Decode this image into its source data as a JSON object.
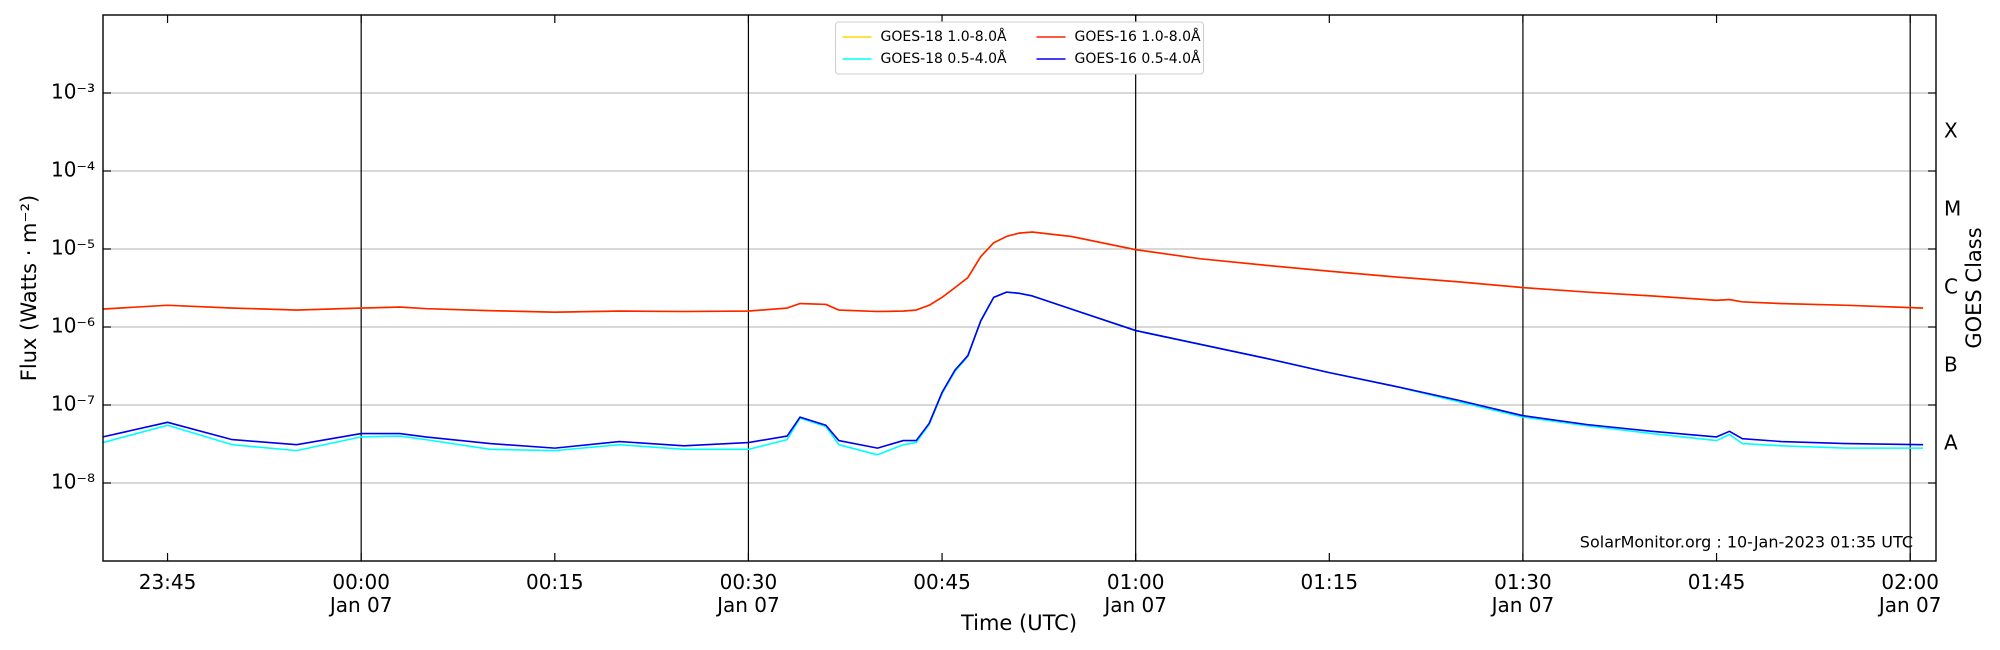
{
  "chart_data": {
    "type": "line",
    "ylabel": "Flux (Watts · m⁻²)",
    "xlabel": "Time (UTC)",
    "y2label": "GOES Class",
    "annotation": "SolarMonitor.org : 10-Jan-2023 01:35 UTC",
    "log_y": true,
    "grid": true,
    "legend_position": "top-center",
    "xlim": [
      "23:40",
      "02:02"
    ],
    "xticks": [
      "23:45",
      {
        "value": "00:00",
        "label": "00:00\nJan 07"
      },
      "00:15",
      {
        "value": "00:30",
        "label": "00:30\nJan 07"
      },
      "00:45",
      {
        "value": "01:00",
        "label": "01:00\nJan 07"
      },
      "01:15",
      {
        "value": "01:30",
        "label": "01:30\nJan 07"
      },
      "01:45",
      {
        "value": "02:00",
        "label": "02:00\nJan 07"
      }
    ],
    "vlines": [
      "00:00",
      "00:30",
      "01:00",
      "01:30",
      "02:00"
    ],
    "ylim": [
      1e-09,
      0.01
    ],
    "yticks": [
      {
        "value": 1e-08,
        "label": "10⁻⁸"
      },
      {
        "value": 1e-07,
        "label": "10⁻⁷"
      },
      {
        "value": 1e-06,
        "label": "10⁻⁶"
      },
      {
        "value": 1e-05,
        "label": "10⁻⁵"
      },
      {
        "value": 0.0001,
        "label": "10⁻⁴"
      },
      {
        "value": 0.001,
        "label": "10⁻³"
      }
    ],
    "y2lim": [
      1e-09,
      0.01
    ],
    "y2ticks": [
      {
        "value": 3.16e-08,
        "label": "A"
      },
      {
        "value": 3.16e-07,
        "label": "B"
      },
      {
        "value": 3.16e-06,
        "label": "C"
      },
      {
        "value": 3.16e-05,
        "label": "M"
      },
      {
        "value": 0.000316,
        "label": "X"
      }
    ],
    "x": [
      "23:40",
      "23:45",
      "23:50",
      "23:55",
      "00:00",
      "00:03",
      "00:05",
      "00:10",
      "00:15",
      "00:20",
      "00:25",
      "00:30",
      "00:33",
      "00:34",
      "00:36",
      "00:37",
      "00:40",
      "00:42",
      "00:43",
      "00:44",
      "00:45",
      "00:46",
      "00:47",
      "00:48",
      "00:49",
      "00:50",
      "00:51",
      "00:52",
      "00:55",
      "01:00",
      "01:05",
      "01:10",
      "01:15",
      "01:20",
      "01:25",
      "01:30",
      "01:35",
      "01:40",
      "01:45",
      "01:46",
      "01:47",
      "01:50",
      "01:55",
      "02:01"
    ],
    "series": [
      {
        "name": "GOES-18 1.0-8.0Å",
        "color": "#ffd700",
        "values": [
          1.7e-06,
          1.9e-06,
          1.75e-06,
          1.65e-06,
          1.75e-06,
          1.8e-06,
          1.72e-06,
          1.62e-06,
          1.55e-06,
          1.6e-06,
          1.58e-06,
          1.6e-06,
          1.75e-06,
          2e-06,
          1.95e-06,
          1.65e-06,
          1.58e-06,
          1.6e-06,
          1.65e-06,
          1.9e-06,
          2.4e-06,
          3.2e-06,
          4.3e-06,
          8e-06,
          1.2e-05,
          1.45e-05,
          1.6e-05,
          1.65e-05,
          1.45e-05,
          9.8e-06,
          7.5e-06,
          6.2e-06,
          5.2e-06,
          4.4e-06,
          3.8e-06,
          3.2e-06,
          2.8e-06,
          2.5e-06,
          2.2e-06,
          2.25e-06,
          2.1e-06,
          2e-06,
          1.9e-06,
          1.75e-06
        ]
      },
      {
        "name": "GOES-18 0.5-4.0Å",
        "color": "#00ffff",
        "values": [
          3.3e-08,
          5.5e-08,
          3.1e-08,
          2.6e-08,
          3.9e-08,
          4e-08,
          3.6e-08,
          2.7e-08,
          2.6e-08,
          3.1e-08,
          2.7e-08,
          2.7e-08,
          3.6e-08,
          6.8e-08,
          5.3e-08,
          3.1e-08,
          2.3e-08,
          3.1e-08,
          3.3e-08,
          5.6e-08,
          1.4e-07,
          2.7e-07,
          4.2e-07,
          1.2e-06,
          2.4e-06,
          2.8e-06,
          2.7e-06,
          2.5e-06,
          1.7e-06,
          9e-07,
          6e-07,
          4e-07,
          2.6e-07,
          1.75e-07,
          1.1e-07,
          7e-08,
          5.4e-08,
          4.3e-08,
          3.5e-08,
          4.2e-08,
          3.2e-08,
          3e-08,
          2.8e-08,
          2.8e-08
        ]
      },
      {
        "name": "GOES-16 1.0-8.0Å",
        "color": "#ff2000",
        "values": [
          1.7e-06,
          1.9e-06,
          1.75e-06,
          1.65e-06,
          1.75e-06,
          1.8e-06,
          1.72e-06,
          1.62e-06,
          1.55e-06,
          1.6e-06,
          1.58e-06,
          1.6e-06,
          1.75e-06,
          2e-06,
          1.95e-06,
          1.65e-06,
          1.58e-06,
          1.6e-06,
          1.65e-06,
          1.9e-06,
          2.4e-06,
          3.2e-06,
          4.3e-06,
          8e-06,
          1.2e-05,
          1.45e-05,
          1.6e-05,
          1.65e-05,
          1.45e-05,
          9.8e-06,
          7.5e-06,
          6.2e-06,
          5.2e-06,
          4.4e-06,
          3.8e-06,
          3.2e-06,
          2.8e-06,
          2.5e-06,
          2.2e-06,
          2.25e-06,
          2.1e-06,
          2e-06,
          1.9e-06,
          1.75e-06
        ]
      },
      {
        "name": "GOES-16 0.5-4.0Å",
        "color": "#0000ee",
        "values": [
          3.9e-08,
          6e-08,
          3.6e-08,
          3.1e-08,
          4.3e-08,
          4.3e-08,
          3.9e-08,
          3.2e-08,
          2.8e-08,
          3.4e-08,
          3e-08,
          3.3e-08,
          4e-08,
          7e-08,
          5.5e-08,
          3.5e-08,
          2.8e-08,
          3.5e-08,
          3.5e-08,
          5.8e-08,
          1.45e-07,
          2.8e-07,
          4.3e-07,
          1.2e-06,
          2.4e-06,
          2.8e-06,
          2.7e-06,
          2.5e-06,
          1.7e-06,
          9e-07,
          6e-07,
          4e-07,
          2.6e-07,
          1.75e-07,
          1.15e-07,
          7.3e-08,
          5.6e-08,
          4.6e-08,
          3.9e-08,
          4.6e-08,
          3.7e-08,
          3.4e-08,
          3.2e-08,
          3.1e-08
        ]
      }
    ]
  }
}
